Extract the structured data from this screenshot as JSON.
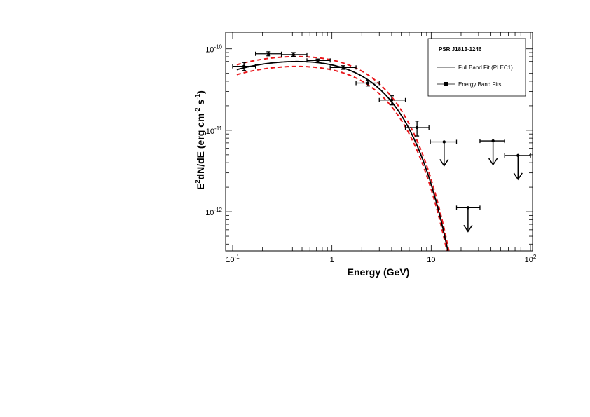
{
  "chart_data": {
    "type": "scatter",
    "xscale": "log",
    "yscale": "log",
    "xlim": [
      0.085,
      105
    ],
    "ylim": [
      3.3e-13,
      1.6e-10
    ],
    "xlabel": "Energy (GeV)",
    "ylabel": "E2dN/dE (erg cm-2 s-1)",
    "x_ticks": [
      {
        "value": 0.1,
        "base": "10",
        "exp": "-1"
      },
      {
        "value": 1,
        "base": "1",
        "exp": ""
      },
      {
        "value": 10,
        "base": "10",
        "exp": ""
      },
      {
        "value": 100,
        "base": "10",
        "exp": "2"
      }
    ],
    "y_ticks": [
      {
        "value": 1e-10,
        "base": "10",
        "exp": "-10"
      },
      {
        "value": 1e-11,
        "base": "10",
        "exp": "-11"
      },
      {
        "value": 1e-12,
        "base": "10",
        "exp": "-12"
      }
    ],
    "legend": {
      "title": "PSR J1813-1246",
      "position": "top-right",
      "entries": [
        "Full Band Fit (PLEC1)",
        "Energy Band Fits"
      ]
    },
    "model": {
      "name": "Full Band Fit (PLEC1)",
      "norm": 7.6e-11,
      "e_peak_scale": 0.32,
      "cutoff": 2.45,
      "band_upper_factor": 1.15,
      "band_lower_factor": 0.87,
      "x_range": [
        0.11,
        16
      ],
      "line_color": "#000000",
      "band_color": "#e8161b"
    },
    "series": [
      {
        "name": "Energy Band Fits",
        "points": [
          {
            "x": 0.13,
            "xlo": 0.1,
            "xhi": 0.17,
            "y": 6.1e-11,
            "ylo": 5.4e-11,
            "yhi": 6.8e-11
          },
          {
            "x": 0.23,
            "xlo": 0.17,
            "xhi": 0.31,
            "y": 8.7e-11,
            "ylo": 8.2e-11,
            "yhi": 9.2e-11
          },
          {
            "x": 0.41,
            "xlo": 0.31,
            "xhi": 0.56,
            "y": 8.5e-11,
            "ylo": 8.1e-11,
            "yhi": 9e-11
          },
          {
            "x": 0.72,
            "xlo": 0.56,
            "xhi": 0.96,
            "y": 7.2e-11,
            "ylo": 6.9e-11,
            "yhi": 7.5e-11
          },
          {
            "x": 1.3,
            "xlo": 0.96,
            "xhi": 1.75,
            "y": 5.9e-11,
            "ylo": 5.6e-11,
            "yhi": 6.2e-11
          },
          {
            "x": 2.3,
            "xlo": 1.75,
            "xhi": 3.0,
            "y": 3.8e-11,
            "ylo": 3.5e-11,
            "yhi": 4.1e-11
          },
          {
            "x": 4.0,
            "xlo": 3.0,
            "xhi": 5.5,
            "y": 2.35e-11,
            "ylo": 2.05e-11,
            "yhi": 2.65e-11
          },
          {
            "x": 7.2,
            "xlo": 5.5,
            "xhi": 9.5,
            "y": 1.08e-11,
            "ylo": 8.5e-12,
            "yhi": 1.3e-11
          }
        ],
        "upper_limits": [
          {
            "x": 13.5,
            "xlo": 9.8,
            "xhi": 18.0,
            "y": 7.2e-12
          },
          {
            "x": 23.5,
            "xlo": 18.0,
            "xhi": 31.0,
            "y": 1.12e-12
          },
          {
            "x": 42.0,
            "xlo": 31.0,
            "xhi": 55.0,
            "y": 7.4e-12
          },
          {
            "x": 75.0,
            "xlo": 55.0,
            "xhi": 100.0,
            "y": 4.9e-12
          }
        ]
      }
    ]
  }
}
